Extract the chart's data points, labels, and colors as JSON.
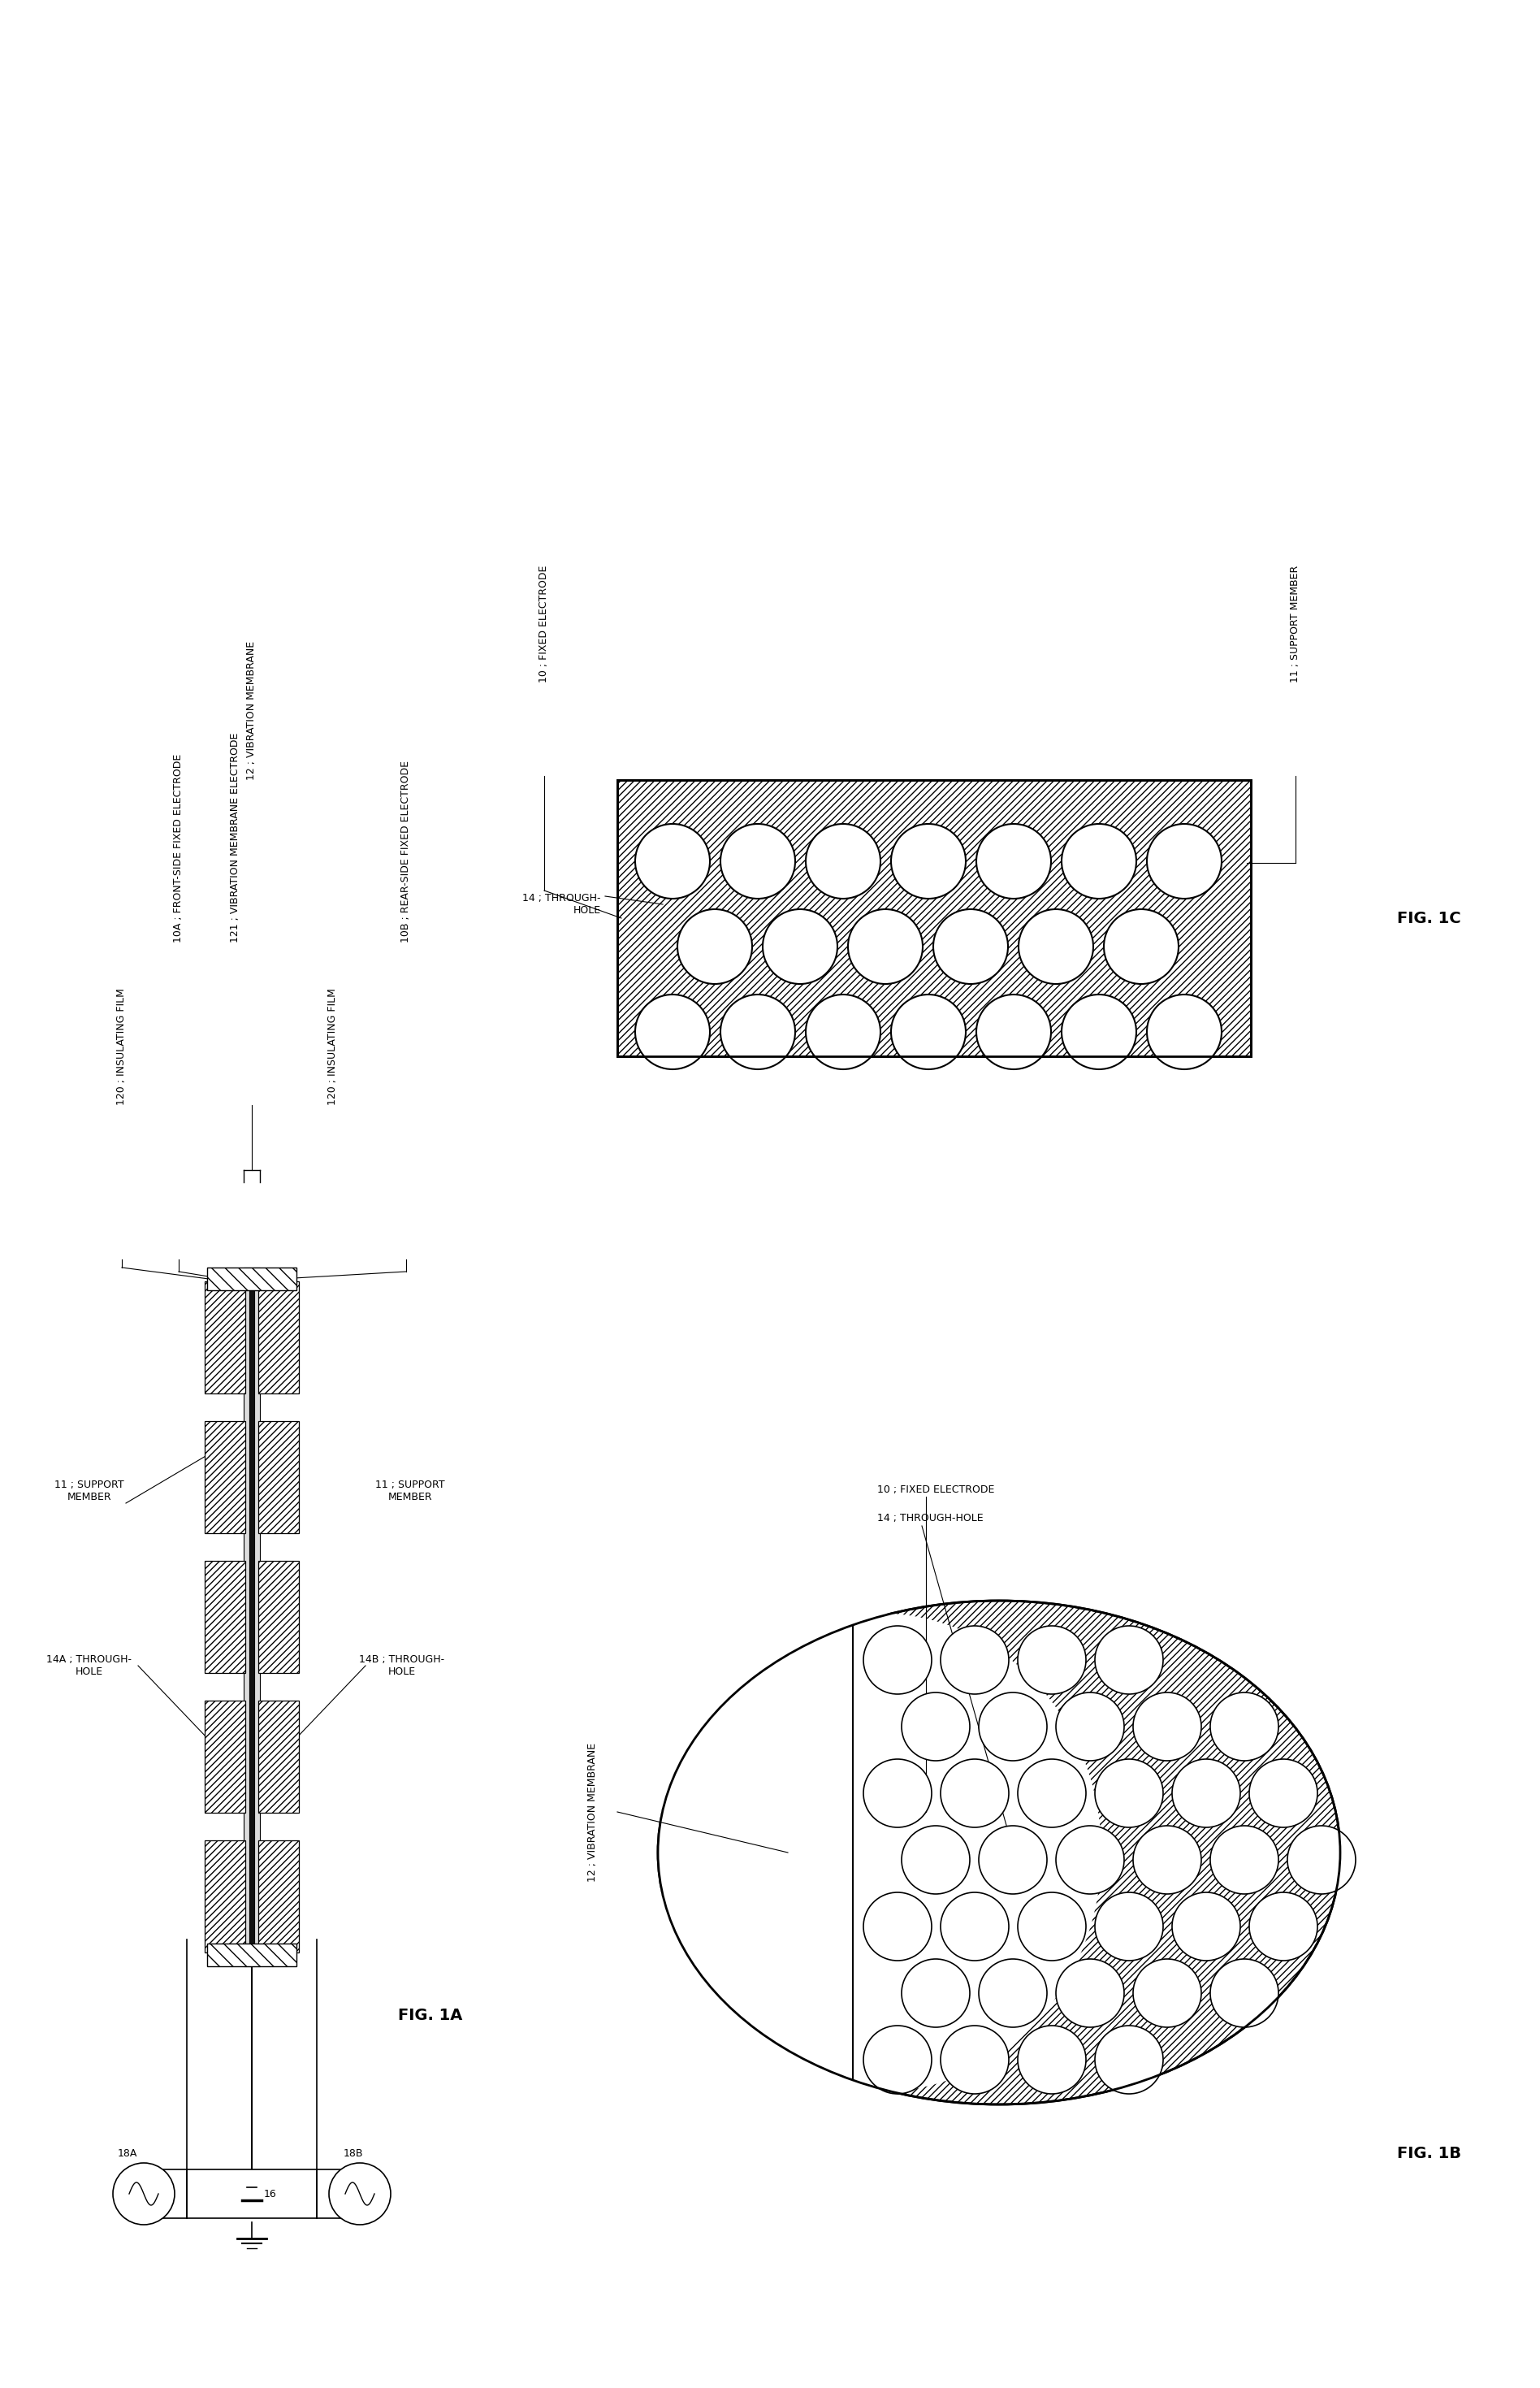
{
  "fig_width": 18.96,
  "fig_height": 29.39,
  "bg_color": "#ffffff",
  "lc": "#000000",
  "fig1a_label": "FIG. 1A",
  "fig1b_label": "FIG. 1B",
  "fig1c_label": "FIG. 1C",
  "label_10A": "10A ; FRONT-SIDE FIXED ELECTRODE",
  "label_10B": "10B ; REAR-SIDE FIXED ELECTRODE",
  "label_11L": "11 ; SUPPORT\nMEMBER",
  "label_11R": "11 ; SUPPORT\nMEMBER",
  "label_120a": "120 ; INSULATING FILM",
  "label_121": "121 ; VIBRATION MEMBRANE ELECTRODE",
  "label_120b": "120 ; INSULATING FILM",
  "label_12": "12 ; VIBRATION MEMBRANE",
  "label_14A": "14A ; THROUGH-\nHOLE",
  "label_14B": "14B ; THROUGH-\nHOLE",
  "label_16": "16",
  "label_18A": "18A",
  "label_18B": "18B",
  "label_1b_12": "12 ; VIBRATION MEMBRANE",
  "label_1b_10": "10 ; FIXED ELECTRODE",
  "label_1b_14": "14 ; THROUGH-HOLE",
  "label_1c_14": "14 ; THROUGH-\nHOLE",
  "label_1c_10": "10 ; FIXED ELECTRODE",
  "label_1c_11": "11 ; SUPPORT MEMBER"
}
